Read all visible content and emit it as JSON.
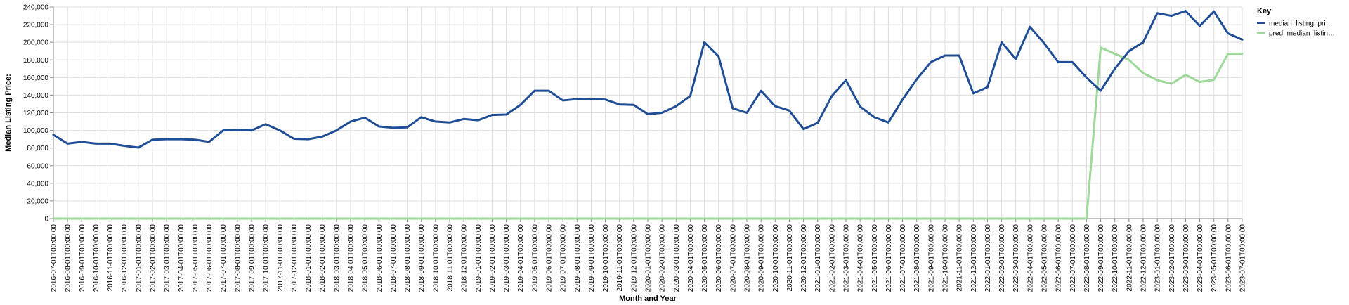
{
  "chart_data": {
    "type": "line",
    "xlabel": "Month and Year",
    "ylabel": "Median Listing Price:",
    "ylim": [
      0,
      240000
    ],
    "y_ticks": [
      "0",
      "20,000",
      "40,000",
      "60,000",
      "80,000",
      "100,000",
      "120,000",
      "140,000",
      "160,000",
      "180,000",
      "200,000",
      "220,000",
      "240,000"
    ],
    "grid": true,
    "legend": {
      "title": "Key",
      "placement": "top-right",
      "entries": [
        {
          "label": "median_listing_pri…",
          "color": "#1f4e96"
        },
        {
          "label": "pred_median_listin…",
          "color": "#9ed89a"
        }
      ]
    },
    "x": [
      "2016-07-01T00:00:00",
      "2016-08-01T00:00:00",
      "2016-09-01T00:00:00",
      "2016-10-01T00:00:00",
      "2016-11-01T00:00:00",
      "2016-12-01T00:00:00",
      "2017-01-01T00:00:00",
      "2017-02-01T00:00:00",
      "2017-03-01T00:00:00",
      "2017-04-01T00:00:00",
      "2017-05-01T00:00:00",
      "2017-06-01T00:00:00",
      "2017-07-01T00:00:00",
      "2017-08-01T00:00:00",
      "2017-09-01T00:00:00",
      "2017-10-01T00:00:00",
      "2017-11-01T00:00:00",
      "2017-12-01T00:00:00",
      "2018-01-01T00:00:00",
      "2018-02-01T00:00:00",
      "2018-03-01T00:00:00",
      "2018-04-01T00:00:00",
      "2018-05-01T00:00:00",
      "2018-06-01T00:00:00",
      "2018-07-01T00:00:00",
      "2018-08-01T00:00:00",
      "2018-09-01T00:00:00",
      "2018-10-01T00:00:00",
      "2018-11-01T00:00:00",
      "2018-12-01T00:00:00",
      "2019-01-01T00:00:00",
      "2019-02-01T00:00:00",
      "2019-03-01T00:00:00",
      "2019-04-01T00:00:00",
      "2019-05-01T00:00:00",
      "2019-06-01T00:00:00",
      "2019-07-01T00:00:00",
      "2019-08-01T00:00:00",
      "2019-09-01T00:00:00",
      "2019-10-01T00:00:00",
      "2019-11-01T00:00:00",
      "2019-12-01T00:00:00",
      "2020-01-01T00:00:00",
      "2020-02-01T00:00:00",
      "2020-03-01T00:00:00",
      "2020-04-01T00:00:00",
      "2020-05-01T00:00:00",
      "2020-06-01T00:00:00",
      "2020-07-01T00:00:00",
      "2020-08-01T00:00:00",
      "2020-09-01T00:00:00",
      "2020-10-01T00:00:00",
      "2020-11-01T00:00:00",
      "2020-12-01T00:00:00",
      "2021-01-01T00:00:00",
      "2021-02-01T00:00:00",
      "2021-03-01T00:00:00",
      "2021-04-01T00:00:00",
      "2021-05-01T00:00:00",
      "2021-06-01T00:00:00",
      "2021-07-01T00:00:00",
      "2021-08-01T00:00:00",
      "2021-09-01T00:00:00",
      "2021-10-01T00:00:00",
      "2021-11-01T00:00:00",
      "2021-12-01T00:00:00",
      "2022-01-01T00:00:00",
      "2022-02-01T00:00:00",
      "2022-03-01T00:00:00",
      "2022-04-01T00:00:00",
      "2022-05-01T00:00:00",
      "2022-06-01T00:00:00",
      "2022-07-01T00:00:00",
      "2022-08-01T00:00:00",
      "2022-09-01T00:00:00",
      "2022-10-01T00:00:00",
      "2022-11-01T00:00:00",
      "2022-12-01T00:00:00",
      "2023-01-01T00:00:00",
      "2023-02-01T00:00:00",
      "2023-03-01T00:00:00",
      "2023-04-01T00:00:00",
      "2023-05-01T00:00:00",
      "2023-06-01T00:00:00",
      "2023-07-01T00:00:00"
    ],
    "series": [
      {
        "name": "median_listing_pri…",
        "color": "#1f4e96",
        "values": [
          95000,
          85000,
          87000,
          85000,
          85000,
          82500,
          80500,
          89500,
          90000,
          90000,
          89500,
          87000,
          100000,
          100500,
          100000,
          107000,
          100000,
          90500,
          90000,
          93000,
          100000,
          110000,
          114500,
          104500,
          103000,
          103500,
          115000,
          110000,
          109000,
          113000,
          111500,
          117500,
          118000,
          129000,
          145000,
          145000,
          134000,
          135500,
          136000,
          135000,
          129500,
          129000,
          118500,
          120000,
          127500,
          139000,
          200000,
          184000,
          125000,
          120000,
          145000,
          127500,
          122500,
          101500,
          108500,
          139000,
          157000,
          127000,
          115000,
          109000,
          135000,
          158000,
          177500,
          185000,
          185000,
          142000,
          149000,
          200000,
          181000,
          217500,
          199000,
          177500,
          177500,
          160000,
          145000,
          170000,
          190000,
          200000,
          233000,
          230000,
          235500,
          218500,
          235000,
          210000,
          203000
        ]
      },
      {
        "name": "pred_median_listin…",
        "color": "#9ed89a",
        "values": [
          0,
          0,
          0,
          0,
          0,
          0,
          0,
          0,
          0,
          0,
          0,
          0,
          0,
          0,
          0,
          0,
          0,
          0,
          0,
          0,
          0,
          0,
          0,
          0,
          0,
          0,
          0,
          0,
          0,
          0,
          0,
          0,
          0,
          0,
          0,
          0,
          0,
          0,
          0,
          0,
          0,
          0,
          0,
          0,
          0,
          0,
          0,
          0,
          0,
          0,
          0,
          0,
          0,
          0,
          0,
          0,
          0,
          0,
          0,
          0,
          0,
          0,
          0,
          0,
          0,
          0,
          0,
          0,
          0,
          0,
          0,
          0,
          0,
          0,
          194000,
          187000,
          180000,
          165000,
          157000,
          153000,
          163000,
          155000,
          157500,
          187000,
          187000
        ]
      }
    ]
  }
}
